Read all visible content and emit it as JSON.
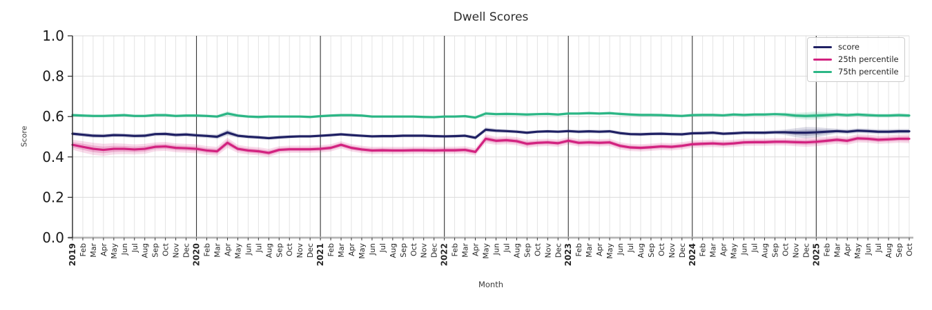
{
  "chart_data": {
    "type": "line",
    "title": "Dwell Scores",
    "xlabel": "Month",
    "ylabel": "Score",
    "ylim": [
      0.0,
      1.0
    ],
    "yticks": [
      0.0,
      0.2,
      0.4,
      0.6,
      0.8,
      1.0
    ],
    "grid": "on",
    "legend_position": "upper right",
    "x_labels": [
      "2019",
      "Feb",
      "Mar",
      "Apr",
      "May",
      "Jun",
      "Jul",
      "Aug",
      "Sep",
      "Oct",
      "Nov",
      "Dec",
      "2020",
      "Feb",
      "Mar",
      "Apr",
      "May",
      "Jun",
      "Jul",
      "Aug",
      "Sep",
      "Oct",
      "Nov",
      "Dec",
      "2021",
      "Feb",
      "Mar",
      "Apr",
      "May",
      "Jun",
      "Jul",
      "Aug",
      "Sep",
      "Oct",
      "Nov",
      "Dec",
      "2022",
      "Feb",
      "Mar",
      "Apr",
      "May",
      "Jun",
      "Jul",
      "Aug",
      "Sep",
      "Oct",
      "Nov",
      "Dec",
      "2023",
      "Feb",
      "Mar",
      "Apr",
      "May",
      "Jun",
      "Jul",
      "Aug",
      "Sep",
      "Oct",
      "Nov",
      "Dec",
      "2024",
      "Feb",
      "Mar",
      "Apr",
      "May",
      "Jun",
      "Jul",
      "Aug",
      "Sep",
      "Oct",
      "Nov",
      "Dec",
      "2025",
      "Feb",
      "Mar",
      "Apr",
      "May",
      "Jun",
      "Jul",
      "Aug",
      "Sep",
      "Oct"
    ],
    "series": [
      {
        "name": "score",
        "color": "#1f2063",
        "values": [
          0.515,
          0.51,
          0.505,
          0.504,
          0.508,
          0.507,
          0.504,
          0.505,
          0.513,
          0.514,
          0.509,
          0.511,
          0.507,
          0.504,
          0.5,
          0.521,
          0.505,
          0.5,
          0.497,
          0.493,
          0.497,
          0.5,
          0.502,
          0.502,
          0.505,
          0.508,
          0.512,
          0.508,
          0.505,
          0.502,
          0.503,
          0.503,
          0.505,
          0.505,
          0.505,
          0.503,
          0.502,
          0.503,
          0.505,
          0.495,
          0.535,
          0.53,
          0.528,
          0.525,
          0.52,
          0.525,
          0.527,
          0.525,
          0.528,
          0.525,
          0.527,
          0.525,
          0.527,
          0.518,
          0.513,
          0.512,
          0.514,
          0.515,
          0.513,
          0.512,
          0.517,
          0.518,
          0.52,
          0.515,
          0.517,
          0.52,
          0.52,
          0.52,
          0.522,
          0.522,
          0.52,
          0.52,
          0.522,
          0.525,
          0.528,
          0.525,
          0.53,
          0.528,
          0.525,
          0.525,
          0.527,
          0.527
        ],
        "band": [
          0.01,
          0.01,
          0.01,
          0.01,
          0.01,
          0.01,
          0.01,
          0.01,
          0.01,
          0.01,
          0.01,
          0.01,
          0.01,
          0.01,
          0.012,
          0.015,
          0.01,
          0.009,
          0.009,
          0.009,
          0.009,
          0.008,
          0.008,
          0.008,
          0.008,
          0.008,
          0.008,
          0.008,
          0.008,
          0.008,
          0.008,
          0.008,
          0.008,
          0.008,
          0.008,
          0.008,
          0.008,
          0.008,
          0.008,
          0.01,
          0.012,
          0.01,
          0.009,
          0.009,
          0.009,
          0.008,
          0.008,
          0.008,
          0.009,
          0.009,
          0.009,
          0.009,
          0.009,
          0.009,
          0.009,
          0.009,
          0.009,
          0.009,
          0.009,
          0.009,
          0.009,
          0.009,
          0.009,
          0.009,
          0.009,
          0.009,
          0.009,
          0.01,
          0.01,
          0.014,
          0.022,
          0.028,
          0.025,
          0.018,
          0.012,
          0.012,
          0.012,
          0.012,
          0.012,
          0.012,
          0.012,
          0.012
        ]
      },
      {
        "name": "25th percentile",
        "color": "#d2217f",
        "values": [
          0.46,
          0.45,
          0.44,
          0.435,
          0.44,
          0.44,
          0.437,
          0.44,
          0.45,
          0.452,
          0.445,
          0.443,
          0.44,
          0.432,
          0.428,
          0.47,
          0.44,
          0.432,
          0.428,
          0.42,
          0.435,
          0.438,
          0.438,
          0.438,
          0.44,
          0.445,
          0.46,
          0.445,
          0.437,
          0.432,
          0.433,
          0.432,
          0.432,
          0.433,
          0.433,
          0.432,
          0.433,
          0.433,
          0.435,
          0.425,
          0.49,
          0.48,
          0.483,
          0.478,
          0.465,
          0.47,
          0.472,
          0.468,
          0.48,
          0.47,
          0.472,
          0.47,
          0.472,
          0.455,
          0.447,
          0.445,
          0.448,
          0.452,
          0.45,
          0.455,
          0.463,
          0.465,
          0.467,
          0.464,
          0.467,
          0.472,
          0.473,
          0.473,
          0.475,
          0.475,
          0.473,
          0.472,
          0.475,
          0.48,
          0.485,
          0.48,
          0.492,
          0.49,
          0.485,
          0.487,
          0.49,
          0.49
        ],
        "band": [
          0.025,
          0.028,
          0.03,
          0.03,
          0.028,
          0.026,
          0.025,
          0.025,
          0.022,
          0.022,
          0.022,
          0.022,
          0.022,
          0.022,
          0.022,
          0.025,
          0.02,
          0.02,
          0.02,
          0.02,
          0.018,
          0.018,
          0.018,
          0.018,
          0.018,
          0.018,
          0.018,
          0.018,
          0.018,
          0.018,
          0.018,
          0.018,
          0.018,
          0.018,
          0.018,
          0.018,
          0.018,
          0.018,
          0.018,
          0.018,
          0.022,
          0.02,
          0.02,
          0.02,
          0.02,
          0.018,
          0.018,
          0.018,
          0.018,
          0.018,
          0.018,
          0.018,
          0.018,
          0.018,
          0.018,
          0.018,
          0.018,
          0.018,
          0.018,
          0.018,
          0.018,
          0.018,
          0.018,
          0.018,
          0.018,
          0.018,
          0.018,
          0.018,
          0.018,
          0.018,
          0.02,
          0.022,
          0.022,
          0.02,
          0.02,
          0.02,
          0.02,
          0.02,
          0.02,
          0.02,
          0.02,
          0.022
        ]
      },
      {
        "name": "75th percentile",
        "color": "#2bb685",
        "values": [
          0.607,
          0.605,
          0.603,
          0.603,
          0.605,
          0.607,
          0.603,
          0.603,
          0.607,
          0.607,
          0.603,
          0.605,
          0.605,
          0.603,
          0.6,
          0.615,
          0.605,
          0.6,
          0.598,
          0.6,
          0.6,
          0.6,
          0.6,
          0.598,
          0.602,
          0.605,
          0.607,
          0.607,
          0.605,
          0.6,
          0.6,
          0.6,
          0.6,
          0.6,
          0.598,
          0.597,
          0.6,
          0.6,
          0.602,
          0.595,
          0.615,
          0.612,
          0.613,
          0.612,
          0.61,
          0.612,
          0.613,
          0.61,
          0.615,
          0.615,
          0.617,
          0.615,
          0.617,
          0.613,
          0.61,
          0.608,
          0.608,
          0.607,
          0.605,
          0.603,
          0.607,
          0.608,
          0.608,
          0.606,
          0.61,
          0.608,
          0.61,
          0.61,
          0.612,
          0.61,
          0.605,
          0.603,
          0.605,
          0.607,
          0.61,
          0.607,
          0.61,
          0.607,
          0.605,
          0.605,
          0.607,
          0.605
        ],
        "band": [
          0.008,
          0.008,
          0.008,
          0.008,
          0.008,
          0.008,
          0.008,
          0.008,
          0.008,
          0.008,
          0.008,
          0.008,
          0.008,
          0.008,
          0.008,
          0.012,
          0.008,
          0.008,
          0.008,
          0.008,
          0.007,
          0.007,
          0.007,
          0.007,
          0.007,
          0.007,
          0.007,
          0.007,
          0.007,
          0.007,
          0.007,
          0.007,
          0.007,
          0.007,
          0.007,
          0.007,
          0.007,
          0.007,
          0.007,
          0.008,
          0.01,
          0.008,
          0.008,
          0.008,
          0.008,
          0.007,
          0.007,
          0.007,
          0.008,
          0.008,
          0.008,
          0.008,
          0.008,
          0.008,
          0.008,
          0.008,
          0.008,
          0.008,
          0.008,
          0.008,
          0.008,
          0.008,
          0.008,
          0.008,
          0.008,
          0.008,
          0.008,
          0.008,
          0.008,
          0.01,
          0.014,
          0.018,
          0.02,
          0.014,
          0.01,
          0.01,
          0.01,
          0.01,
          0.01,
          0.01,
          0.01,
          0.01
        ]
      }
    ],
    "colors": {
      "score_line": "#1f2063",
      "p25_line": "#d2217f",
      "p75_line": "#2bb685",
      "month_grid": "#dcdcdc",
      "year_grid": "#333333",
      "axis_spine": "#262626",
      "baseline": "#b5b5b5",
      "tick_text": "#262626"
    }
  }
}
